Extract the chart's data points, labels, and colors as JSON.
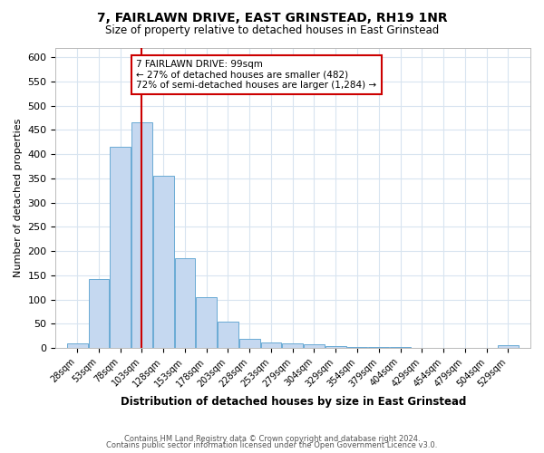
{
  "title": "7, FAIRLAWN DRIVE, EAST GRINSTEAD, RH19 1NR",
  "subtitle": "Size of property relative to detached houses in East Grinstead",
  "xlabel": "Distribution of detached houses by size in East Grinstead",
  "ylabel": "Number of detached properties",
  "bin_labels": [
    "28sqm",
    "53sqm",
    "78sqm",
    "103sqm",
    "128sqm",
    "153sqm",
    "178sqm",
    "203sqm",
    "228sqm",
    "253sqm",
    "279sqm",
    "304sqm",
    "329sqm",
    "354sqm",
    "379sqm",
    "404sqm",
    "429sqm",
    "454sqm",
    "479sqm",
    "504sqm",
    "529sqm"
  ],
  "bar_heights": [
    10,
    143,
    415,
    465,
    355,
    185,
    105,
    55,
    18,
    12,
    10,
    8,
    4,
    2,
    2,
    2,
    0,
    0,
    0,
    0,
    5
  ],
  "bar_color": "#c5d8f0",
  "bar_edge_color": "#6aaad4",
  "vline_x": 103,
  "vline_color": "#cc0000",
  "annotation_text": "7 FAIRLAWN DRIVE: 99sqm\n← 27% of detached houses are smaller (482)\n72% of semi-detached houses are larger (1,284) →",
  "annotation_box_color": "#ffffff",
  "annotation_box_edge": "#cc0000",
  "ylim": [
    0,
    620
  ],
  "yticks": [
    0,
    50,
    100,
    150,
    200,
    250,
    300,
    350,
    400,
    450,
    500,
    550,
    600
  ],
  "footer1": "Contains HM Land Registry data © Crown copyright and database right 2024.",
  "footer2": "Contains public sector information licensed under the Open Government Licence v3.0.",
  "bg_color": "#ffffff",
  "plot_bg_color": "#ffffff",
  "grid_color": "#d8e4f0"
}
